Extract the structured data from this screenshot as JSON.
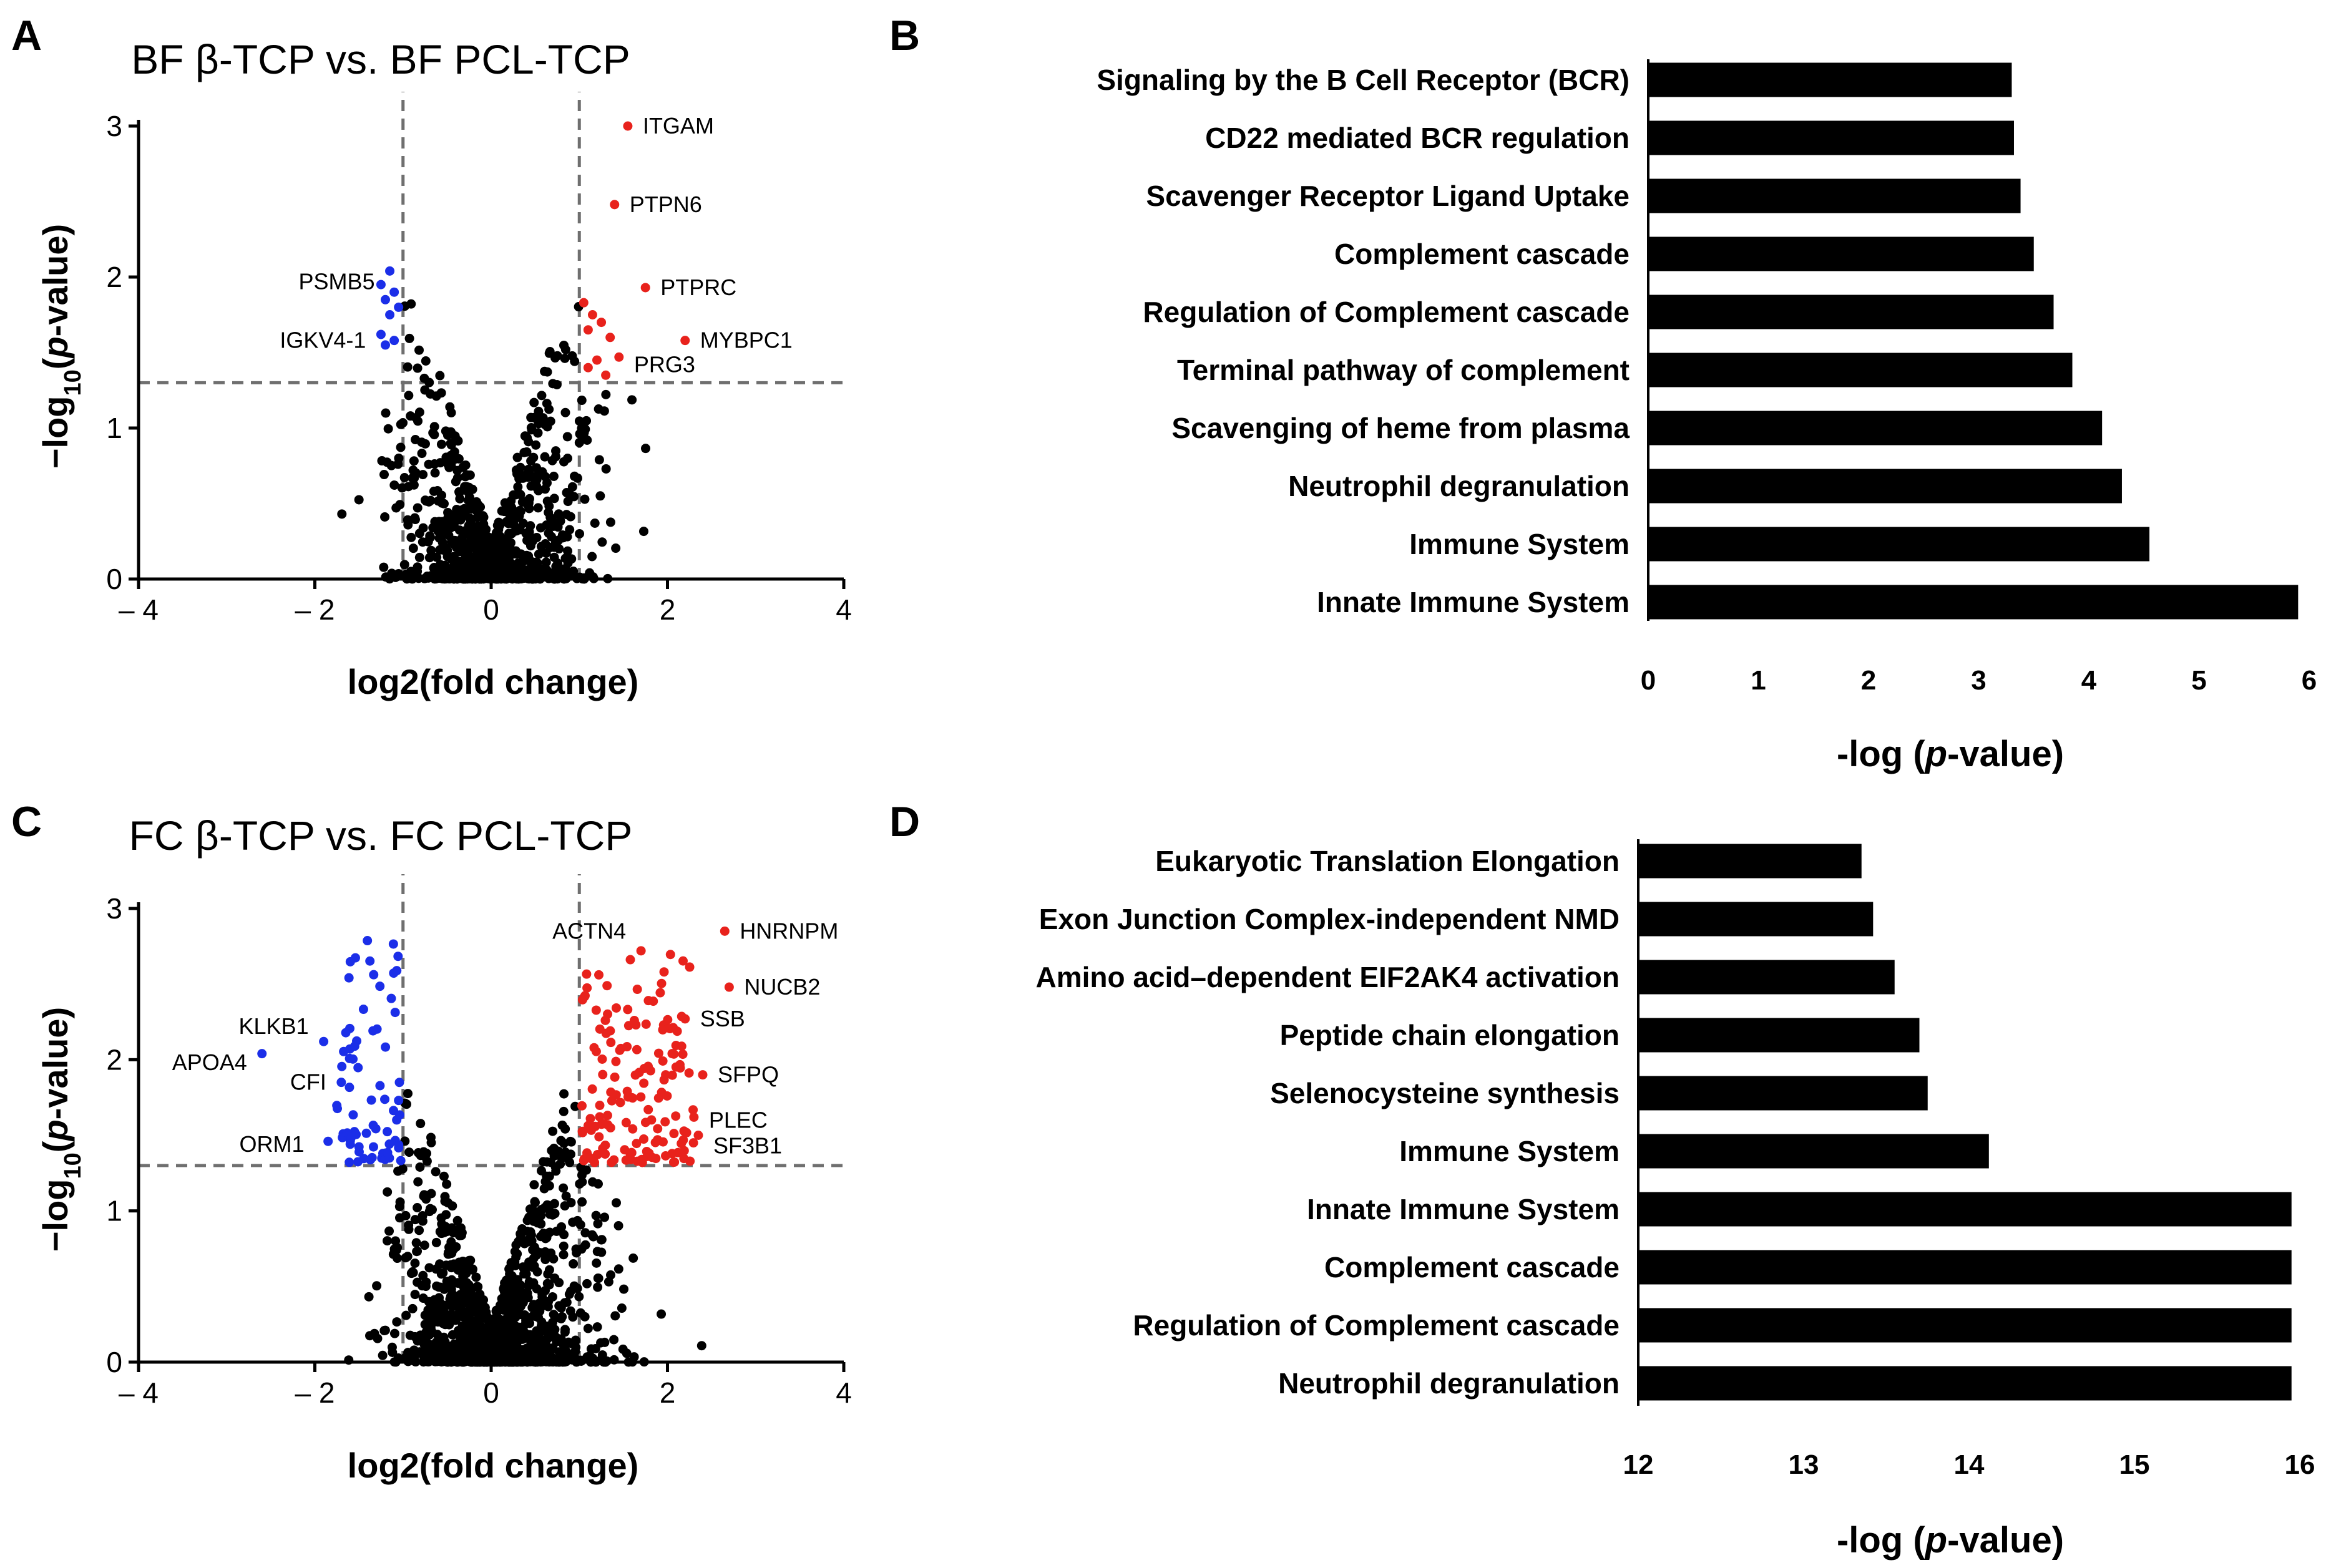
{
  "figure": {
    "letters": [
      "A",
      "B",
      "C",
      "D"
    ]
  },
  "chart_data": [
    {
      "panel": "A",
      "type": "scatter",
      "title": "BF β-TCP vs. BF PCL-TCP",
      "xlabel": "log2(fold change)",
      "ylabel_parts": [
        "−log",
        "10",
        "(",
        "p",
        "-value)"
      ],
      "xlim": [
        -4,
        4
      ],
      "ylim": [
        0,
        3
      ],
      "xticks": [
        -4,
        -2,
        0,
        2,
        4
      ],
      "xtick_labels": [
        "– 4",
        "– 2",
        "0",
        "2",
        "4"
      ],
      "yticks": [
        0,
        1,
        2,
        3
      ],
      "ytick_labels": [
        "0",
        "1",
        "2",
        "3"
      ],
      "thresholds": {
        "x": [
          -1,
          1
        ],
        "y": 1.3
      },
      "colors": {
        "up": "#e8221c",
        "down": "#1b2ee8",
        "ns": "#000000"
      },
      "seed": 11,
      "n_background": 900,
      "down_points": [
        [
          -1.15,
          2.04
        ],
        [
          -1.25,
          1.95
        ],
        [
          -1.1,
          1.9
        ],
        [
          -1.2,
          1.85
        ],
        [
          -1.05,
          1.8
        ],
        [
          -1.15,
          1.75
        ],
        [
          -1.25,
          1.62
        ],
        [
          -1.1,
          1.58
        ],
        [
          -1.2,
          1.55
        ]
      ],
      "up_points": [
        [
          1.55,
          3.0
        ],
        [
          1.4,
          2.48
        ],
        [
          1.75,
          1.93
        ],
        [
          1.05,
          1.83
        ],
        [
          1.15,
          1.75
        ],
        [
          1.25,
          1.7
        ],
        [
          1.1,
          1.65
        ],
        [
          1.35,
          1.6
        ],
        [
          1.2,
          1.45
        ],
        [
          1.45,
          1.47
        ],
        [
          1.3,
          1.35
        ],
        [
          1.1,
          1.4
        ],
        [
          2.2,
          1.58
        ]
      ],
      "labels": [
        {
          "text": "ITGAM",
          "x": 1.55,
          "y": 3.0,
          "side": "right"
        },
        {
          "text": "PTPN6",
          "x": 1.4,
          "y": 2.48,
          "side": "right"
        },
        {
          "text": "PTPRC",
          "x": 1.75,
          "y": 1.93,
          "side": "right"
        },
        {
          "text": "MYBPC1",
          "x": 2.2,
          "y": 1.58,
          "side": "right"
        },
        {
          "text": "PRG3",
          "x": 1.45,
          "y": 1.42,
          "side": "right"
        },
        {
          "text": "PSMB5",
          "x": -1.15,
          "y": 1.97,
          "side": "left"
        },
        {
          "text": "IGKV4-1",
          "x": -1.25,
          "y": 1.58,
          "side": "left"
        }
      ]
    },
    {
      "panel": "B",
      "type": "bar",
      "orientation": "horizontal",
      "categories": [
        "Signaling by the B Cell Receptor (BCR)",
        "CD22 mediated BCR regulation",
        "Scavenger Receptor Ligand Uptake",
        "Complement cascade",
        "Regulation of Complement cascade",
        "Terminal pathway of complement",
        "Scavenging of heme from plasma",
        "Neutrophil degranulation",
        "Immune System",
        "Innate Immune System"
      ],
      "values": [
        3.3,
        3.32,
        3.38,
        3.5,
        3.68,
        3.85,
        4.12,
        4.3,
        4.55,
        5.9
      ],
      "xlim": [
        0,
        6
      ],
      "xticks": [
        0,
        1,
        2,
        3,
        4,
        5,
        6
      ],
      "xlabel_parts": [
        "-log (",
        "p",
        "-value)"
      ]
    },
    {
      "panel": "C",
      "type": "scatter",
      "title": "FC β-TCP vs. FC PCL-TCP",
      "xlabel": "log2(fold change)",
      "ylabel_parts": [
        "−log",
        "10",
        "(",
        "p",
        "-value)"
      ],
      "xlim": [
        -4,
        4
      ],
      "ylim": [
        0,
        3
      ],
      "xticks": [
        -4,
        -2,
        0,
        2,
        4
      ],
      "xtick_labels": [
        "– 4",
        "– 2",
        "0",
        "2",
        "4"
      ],
      "yticks": [
        0,
        1,
        2,
        3
      ],
      "ytick_labels": [
        "0",
        "1",
        "2",
        "3"
      ],
      "thresholds": {
        "x": [
          -1,
          1
        ],
        "y": 1.3
      },
      "colors": {
        "up": "#e8221c",
        "down": "#1b2ee8",
        "ns": "#000000"
      },
      "seed": 29,
      "n_background": 1300,
      "down_cluster": {
        "n": 70,
        "xmin": -1.8,
        "xmax": -1.02,
        "ymin": 1.32,
        "ymax": 2.88
      },
      "up_cluster": {
        "n": 150,
        "xmin": 1.02,
        "xmax": 2.3,
        "ymin": 1.32,
        "ymax": 2.7
      },
      "down_points": [
        [
          -2.6,
          2.04
        ],
        [
          -1.9,
          2.12
        ],
        [
          -1.7,
          1.85
        ],
        [
          -1.85,
          1.46
        ]
      ],
      "up_points": [
        [
          2.65,
          2.85
        ],
        [
          2.7,
          2.48
        ],
        [
          1.7,
          2.72
        ],
        [
          2.2,
          2.27
        ],
        [
          2.4,
          1.9
        ],
        [
          2.3,
          1.62
        ],
        [
          2.35,
          1.5
        ]
      ],
      "labels": [
        {
          "text": "HNRNPM",
          "x": 2.65,
          "y": 2.85,
          "side": "right"
        },
        {
          "text": "ACTN4",
          "x": 1.7,
          "y": 2.85,
          "side": "left"
        },
        {
          "text": "NUCB2",
          "x": 2.7,
          "y": 2.48,
          "side": "right"
        },
        {
          "text": "SSB",
          "x": 2.2,
          "y": 2.27,
          "side": "right"
        },
        {
          "text": "SFPQ",
          "x": 2.4,
          "y": 1.9,
          "side": "right"
        },
        {
          "text": "PLEC",
          "x": 2.3,
          "y": 1.6,
          "side": "right"
        },
        {
          "text": "SF3B1",
          "x": 2.35,
          "y": 1.43,
          "side": "right"
        },
        {
          "text": "KLKB1",
          "x": -1.9,
          "y": 2.22,
          "side": "left"
        },
        {
          "text": "APOA4",
          "x": -2.6,
          "y": 1.98,
          "side": "left"
        },
        {
          "text": "CFI",
          "x": -1.7,
          "y": 1.85,
          "side": "left"
        },
        {
          "text": "ORM1",
          "x": -1.95,
          "y": 1.44,
          "side": "left"
        }
      ]
    },
    {
      "panel": "D",
      "type": "bar",
      "orientation": "horizontal",
      "categories": [
        "Eukaryotic Translation Elongation",
        "Exon Junction Complex-independent NMD",
        "Amino acid–dependent EIF2AK4 activation",
        "Peptide chain elongation",
        "Selenocysteine synthesis",
        "Immune System",
        "Innate Immune System",
        "Complement cascade",
        "Regulation of Complement cascade",
        "Neutrophil degranulation"
      ],
      "values": [
        13.35,
        13.42,
        13.55,
        13.7,
        13.75,
        14.12,
        15.95,
        15.95,
        15.95,
        15.95
      ],
      "xlim": [
        12,
        16
      ],
      "xticks": [
        12,
        13,
        14,
        15,
        16
      ],
      "xlabel_parts": [
        "-log (",
        "p",
        "-value)"
      ]
    }
  ]
}
